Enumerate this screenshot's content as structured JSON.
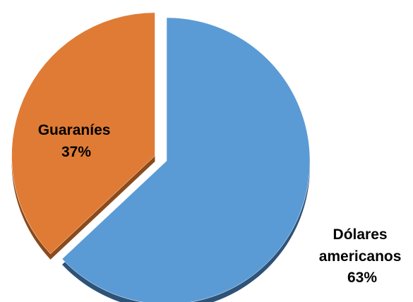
{
  "chart_data": {
    "type": "pie",
    "title": "",
    "slices": [
      {
        "label_lines": [
          "Dólares",
          "americanos",
          "63%"
        ],
        "value": 63,
        "color": "#5B9BD5",
        "side_color": "#2E5379",
        "exploded": false
      },
      {
        "label_lines": [
          "Guaraníes",
          "37%"
        ],
        "value": 37,
        "color": "#E07B35",
        "side_color": "#8B4A1C",
        "exploded": true
      }
    ],
    "style": "3d",
    "legend": "none"
  }
}
